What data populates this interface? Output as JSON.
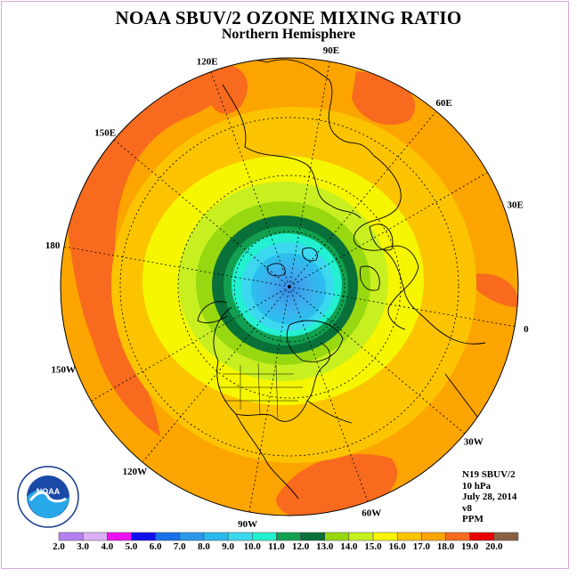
{
  "title": "NOAA SBUV/2 OZONE MIXING RATIO",
  "subtitle": "Northern Hemisphere",
  "logo": {
    "text": "NOAA",
    "ring_text": "NATIONAL OCEANIC AND ATMOSPHERIC ADMINISTRATION · U.S. DEPARTMENT OF COMMERCE"
  },
  "info": {
    "satellite": "N19 SBUV/2",
    "level": "10 hPa",
    "date": "July 28, 2014",
    "version": "v8",
    "units": "PPM"
  },
  "longitude_labels": [
    {
      "text": "90E",
      "angle": 90
    },
    {
      "text": "60E",
      "angle": 60
    },
    {
      "text": "30E",
      "angle": 30
    },
    {
      "text": "0",
      "angle": 0
    },
    {
      "text": "30W",
      "angle": -30
    },
    {
      "text": "60W",
      "angle": -60
    },
    {
      "text": "90W",
      "angle": -90
    },
    {
      "text": "120W",
      "angle": -120
    },
    {
      "text": "150W",
      "angle": -150
    },
    {
      "text": "180",
      "angle": 180
    },
    {
      "text": "150E",
      "angle": 150
    },
    {
      "text": "120E",
      "angle": 120
    }
  ],
  "colorbar": {
    "labels": [
      "2.0",
      "3.0",
      "4.0",
      "5.0",
      "6.0",
      "7.0",
      "8.0",
      "9.0",
      "10.0",
      "11.0",
      "12.0",
      "13.0",
      "14.0",
      "15.0",
      "16.0",
      "17.0",
      "18.0",
      "19.0",
      "20.0"
    ],
    "colors": [
      "#b580f0",
      "#dcb0f5",
      "#ee10ee",
      "#1010ee",
      "#1a70e8",
      "#2a98e8",
      "#28b8ee",
      "#3cd8f0",
      "#22f0d0",
      "#12a050",
      "#087038",
      "#98d810",
      "#c8f020",
      "#f6f600",
      "#fcc400",
      "#fca400",
      "#f86a1e",
      "#e80000",
      "#8a6040"
    ]
  }
}
